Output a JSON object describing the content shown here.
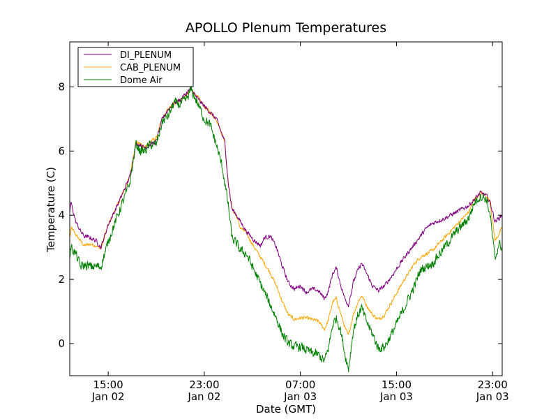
{
  "chart_data": {
    "type": "line",
    "title": "APOLLO Plenum Temperatures",
    "xlabel": "Date (GMT)",
    "ylabel": "Temperature (C)",
    "x_unit": "hours since 00:00 Jan 02 (GMT)",
    "xlim": [
      11.8,
      47.8
    ],
    "ylim": [
      -1,
      9.4
    ],
    "yticks": [
      0,
      2,
      4,
      6,
      8
    ],
    "xticks": [
      {
        "value": 15,
        "line1": "15:00",
        "line2": "Jan 02"
      },
      {
        "value": 23,
        "line1": "23:00",
        "line2": "Jan 02"
      },
      {
        "value": 31,
        "line1": "07:00",
        "line2": "Jan 03"
      },
      {
        "value": 39,
        "line1": "15:00",
        "line2": "Jan 03"
      },
      {
        "value": 47,
        "line1": "23:00",
        "line2": "Jan 03"
      }
    ],
    "grid": false,
    "legend_position": "top-left",
    "series": [
      {
        "name": "DI_PLENUM",
        "color": "#800080",
        "noise": 0.06,
        "points": [
          [
            11.8,
            4.1
          ],
          [
            11.9,
            4.4
          ],
          [
            12.3,
            3.8
          ],
          [
            12.7,
            3.5
          ],
          [
            13.0,
            3.35
          ],
          [
            13.5,
            3.3
          ],
          [
            14.0,
            3.2
          ],
          [
            14.4,
            3.0
          ],
          [
            15.0,
            3.7
          ],
          [
            16.0,
            4.5
          ],
          [
            16.8,
            5.2
          ],
          [
            17.3,
            6.2
          ],
          [
            17.7,
            6.2
          ],
          [
            18.0,
            6.1
          ],
          [
            18.5,
            6.2
          ],
          [
            19.0,
            6.3
          ],
          [
            19.5,
            7.0
          ],
          [
            20.0,
            7.3
          ],
          [
            20.5,
            7.5
          ],
          [
            21.0,
            7.6
          ],
          [
            21.5,
            7.8
          ],
          [
            21.9,
            7.95
          ],
          [
            22.3,
            7.7
          ],
          [
            23.0,
            7.4
          ],
          [
            24.0,
            7.0
          ],
          [
            24.7,
            6.3
          ],
          [
            25.0,
            5.0
          ],
          [
            25.3,
            4.2
          ],
          [
            25.7,
            4.0
          ],
          [
            26.0,
            3.8
          ],
          [
            26.5,
            3.5
          ],
          [
            27.2,
            3.2
          ],
          [
            27.7,
            3.05
          ],
          [
            28.0,
            3.3
          ],
          [
            28.5,
            3.35
          ],
          [
            29.0,
            3.0
          ],
          [
            29.5,
            2.4
          ],
          [
            30.0,
            1.9
          ],
          [
            30.5,
            1.7
          ],
          [
            31.0,
            1.8
          ],
          [
            31.5,
            1.6
          ],
          [
            32.0,
            1.7
          ],
          [
            32.5,
            1.65
          ],
          [
            33.0,
            1.4
          ],
          [
            33.3,
            1.6
          ],
          [
            33.7,
            2.2
          ],
          [
            34.0,
            2.35
          ],
          [
            34.3,
            1.9
          ],
          [
            34.7,
            1.4
          ],
          [
            35.0,
            1.2
          ],
          [
            35.4,
            1.9
          ],
          [
            35.8,
            2.3
          ],
          [
            36.1,
            2.5
          ],
          [
            36.5,
            2.2
          ],
          [
            37.0,
            1.8
          ],
          [
            37.5,
            1.65
          ],
          [
            38.0,
            1.8
          ],
          [
            38.6,
            2.1
          ],
          [
            39.5,
            2.6
          ],
          [
            40.5,
            3.1
          ],
          [
            41.5,
            3.6
          ],
          [
            42.0,
            3.75
          ],
          [
            43.0,
            3.9
          ],
          [
            44.0,
            4.1
          ],
          [
            45.0,
            4.3
          ],
          [
            45.5,
            4.5
          ],
          [
            46.0,
            4.7
          ],
          [
            46.5,
            4.6
          ],
          [
            46.8,
            4.4
          ],
          [
            47.2,
            3.8
          ],
          [
            47.5,
            3.9
          ],
          [
            47.8,
            4.0
          ]
        ]
      },
      {
        "name": "CAB_PLENUM",
        "color": "#ffa500",
        "noise": 0.05,
        "points": [
          [
            11.8,
            3.3
          ],
          [
            11.95,
            3.6
          ],
          [
            12.3,
            3.4
          ],
          [
            12.7,
            3.2
          ],
          [
            13.0,
            3.05
          ],
          [
            13.5,
            3.1
          ],
          [
            14.0,
            3.05
          ],
          [
            14.4,
            2.95
          ],
          [
            15.0,
            3.7
          ],
          [
            16.0,
            4.5
          ],
          [
            16.8,
            5.2
          ],
          [
            17.3,
            6.3
          ],
          [
            17.7,
            6.2
          ],
          [
            18.0,
            6.1
          ],
          [
            18.5,
            6.3
          ],
          [
            19.0,
            6.4
          ],
          [
            19.5,
            7.0
          ],
          [
            20.0,
            7.3
          ],
          [
            20.5,
            7.5
          ],
          [
            21.0,
            7.6
          ],
          [
            21.5,
            7.75
          ],
          [
            21.9,
            7.9
          ],
          [
            22.3,
            7.75
          ],
          [
            23.0,
            7.4
          ],
          [
            24.0,
            7.0
          ],
          [
            24.7,
            6.3
          ],
          [
            25.0,
            5.0
          ],
          [
            25.3,
            4.2
          ],
          [
            25.7,
            3.95
          ],
          [
            26.0,
            3.6
          ],
          [
            26.5,
            3.45
          ],
          [
            27.0,
            3.1
          ],
          [
            27.5,
            2.8
          ],
          [
            28.0,
            2.5
          ],
          [
            28.5,
            2.2
          ],
          [
            29.0,
            1.8
          ],
          [
            29.5,
            1.3
          ],
          [
            30.0,
            0.9
          ],
          [
            30.5,
            0.75
          ],
          [
            31.0,
            0.8
          ],
          [
            31.5,
            0.8
          ],
          [
            32.0,
            0.75
          ],
          [
            32.5,
            0.7
          ],
          [
            33.0,
            0.45
          ],
          [
            33.3,
            0.7
          ],
          [
            33.7,
            1.3
          ],
          [
            34.0,
            1.4
          ],
          [
            34.3,
            1.0
          ],
          [
            34.7,
            0.5
          ],
          [
            35.0,
            0.25
          ],
          [
            35.4,
            0.9
          ],
          [
            35.8,
            1.3
          ],
          [
            36.1,
            1.5
          ],
          [
            36.5,
            1.2
          ],
          [
            37.0,
            0.9
          ],
          [
            37.5,
            0.75
          ],
          [
            38.0,
            0.9
          ],
          [
            38.6,
            1.3
          ],
          [
            39.5,
            1.9
          ],
          [
            40.5,
            2.5
          ],
          [
            41.0,
            2.7
          ],
          [
            42.0,
            2.9
          ],
          [
            43.0,
            3.3
          ],
          [
            44.0,
            3.7
          ],
          [
            45.0,
            4.1
          ],
          [
            45.5,
            4.5
          ],
          [
            46.0,
            4.7
          ],
          [
            46.5,
            4.6
          ],
          [
            46.8,
            4.4
          ],
          [
            47.2,
            3.2
          ],
          [
            47.5,
            3.4
          ],
          [
            47.8,
            3.6
          ]
        ]
      },
      {
        "name": "Dome Air",
        "color": "#008000",
        "noise": 0.13,
        "points": [
          [
            11.8,
            2.7
          ],
          [
            11.9,
            3.0
          ],
          [
            12.3,
            2.8
          ],
          [
            12.7,
            2.4
          ],
          [
            13.0,
            2.45
          ],
          [
            13.5,
            2.4
          ],
          [
            14.0,
            2.4
          ],
          [
            14.4,
            2.4
          ],
          [
            14.7,
            2.8
          ],
          [
            15.2,
            3.4
          ],
          [
            16.0,
            4.2
          ],
          [
            16.8,
            5.0
          ],
          [
            17.3,
            6.2
          ],
          [
            17.7,
            6.0
          ],
          [
            18.0,
            6.0
          ],
          [
            18.5,
            6.2
          ],
          [
            19.0,
            6.2
          ],
          [
            19.5,
            6.9
          ],
          [
            20.0,
            7.1
          ],
          [
            20.5,
            7.5
          ],
          [
            21.0,
            7.45
          ],
          [
            21.5,
            7.6
          ],
          [
            21.9,
            7.9
          ],
          [
            22.3,
            7.6
          ],
          [
            23.0,
            7.0
          ],
          [
            23.5,
            6.8
          ],
          [
            24.0,
            6.2
          ],
          [
            24.5,
            5.5
          ],
          [
            25.0,
            4.3
          ],
          [
            25.3,
            3.3
          ],
          [
            25.7,
            3.1
          ],
          [
            26.0,
            2.9
          ],
          [
            26.5,
            2.8
          ],
          [
            27.0,
            2.4
          ],
          [
            27.5,
            2.0
          ],
          [
            28.0,
            1.6
          ],
          [
            28.5,
            1.2
          ],
          [
            29.0,
            0.8
          ],
          [
            29.5,
            0.3
          ],
          [
            30.0,
            0.0
          ],
          [
            30.5,
            -0.1
          ],
          [
            31.0,
            -0.1
          ],
          [
            31.5,
            -0.2
          ],
          [
            32.0,
            -0.3
          ],
          [
            32.5,
            -0.35
          ],
          [
            33.0,
            -0.55
          ],
          [
            33.3,
            -0.2
          ],
          [
            33.7,
            0.6
          ],
          [
            34.0,
            0.8
          ],
          [
            34.3,
            0.5
          ],
          [
            34.7,
            -0.3
          ],
          [
            35.0,
            -0.8
          ],
          [
            35.4,
            0.4
          ],
          [
            35.8,
            0.9
          ],
          [
            36.1,
            1.1
          ],
          [
            36.5,
            0.7
          ],
          [
            37.0,
            0.3
          ],
          [
            37.5,
            -0.15
          ],
          [
            38.0,
            -0.1
          ],
          [
            38.6,
            0.3
          ],
          [
            39.5,
            1.0
          ],
          [
            40.5,
            1.8
          ],
          [
            41.0,
            2.3
          ],
          [
            42.0,
            2.5
          ],
          [
            43.0,
            3.0
          ],
          [
            44.0,
            3.5
          ],
          [
            45.0,
            3.9
          ],
          [
            45.5,
            4.4
          ],
          [
            46.0,
            4.6
          ],
          [
            46.5,
            4.5
          ],
          [
            46.8,
            4.0
          ],
          [
            47.2,
            2.6
          ],
          [
            47.5,
            3.1
          ],
          [
            47.8,
            3.0
          ]
        ]
      }
    ]
  }
}
